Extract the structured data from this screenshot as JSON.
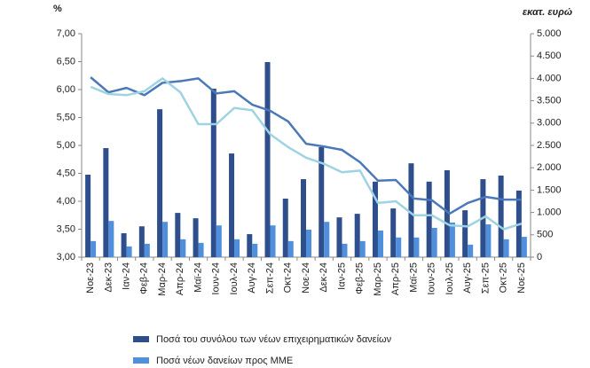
{
  "chart_data": {
    "type": "bar_line",
    "y_label": "%",
    "y2_label": "εκατ. ευρώ",
    "categories": [
      "Νοε-23",
      "Δεκ-23",
      "Ιαν-24",
      "Φεβ-24",
      "Μαρ-24",
      "Απρ-24",
      "Μαϊ-24",
      "Ιουν-24",
      "Ιουλ-24",
      "Αυγ-24",
      "Σεπ-24",
      "Οκτ-24",
      "Νοε-24",
      "Δεκ-24",
      "Ιαν-25",
      "Φεβ-25",
      "Μαρ-25",
      "Απρ-25",
      "Μαϊ-25",
      "Ιουν-25",
      "Ιουλ-25",
      "Αυγ-25",
      "Σεπ-25",
      "Οκτ-25",
      "Νοε-25"
    ],
    "series": [
      {
        "name": "Ποσά του συνόλου των νέων επιχειρηματικών δανείων",
        "type": "bar",
        "axis": "y2",
        "color": "#2e4f8c",
        "values": [
          1845,
          2440,
          535,
          690,
          3310,
          990,
          870,
          3770,
          2320,
          515,
          4365,
          1310,
          1745,
          2460,
          890,
          970,
          1690,
          1090,
          2100,
          1690,
          1945,
          1050,
          1745,
          1825,
          1490
        ]
      },
      {
        "name": "Ποσά νέων δανείων προς ΜΜΕ",
        "type": "bar",
        "axis": "y2",
        "color": "#4f8fdc",
        "values": [
          360,
          810,
          240,
          300,
          790,
          400,
          320,
          710,
          400,
          300,
          710,
          360,
          615,
          790,
          300,
          360,
          595,
          440,
          440,
          655,
          775,
          280,
          735,
          400,
          455
        ]
      },
      {
        "type": "line",
        "color": "#4a78b8",
        "values": [
          6.22,
          5.95,
          6.03,
          5.9,
          6.12,
          6.15,
          6.2,
          5.93,
          5.97,
          5.73,
          5.62,
          5.43,
          5.03,
          4.98,
          4.92,
          4.7,
          4.37,
          4.38,
          4.05,
          4.02,
          3.78,
          3.97,
          4.08,
          4.03,
          4.03
        ]
      },
      {
        "type": "line",
        "color": "#9fd3e2",
        "values": [
          6.05,
          5.92,
          5.9,
          5.97,
          6.2,
          5.95,
          5.38,
          5.38,
          5.67,
          5.63,
          5.2,
          4.97,
          4.78,
          4.67,
          4.52,
          4.55,
          3.97,
          4.0,
          3.75,
          3.75,
          3.57,
          3.55,
          3.73,
          3.5,
          3.6
        ]
      }
    ],
    "ylim": [
      3,
      7
    ],
    "yticks": [
      {
        "value": 3,
        "label": "3,00"
      },
      {
        "value": 3.5,
        "label": "3,50"
      },
      {
        "value": 4,
        "label": "4,00"
      },
      {
        "value": 4.5,
        "label": "4,50"
      },
      {
        "value": 5,
        "label": "5,00"
      },
      {
        "value": 5.5,
        "label": "5,50"
      },
      {
        "value": 6,
        "label": "6,00"
      },
      {
        "value": 6.5,
        "label": "6,50"
      },
      {
        "value": 7,
        "label": "7,00"
      }
    ],
    "y2lim": [
      0,
      5000
    ],
    "y2ticks": [
      0,
      {
        "value": 500,
        "label": "500"
      },
      {
        "value": 1000,
        "label": "1.000"
      },
      {
        "value": 1500,
        "label": "1.500"
      },
      {
        "value": 2000,
        "label": "2.000"
      },
      {
        "value": 2500,
        "label": "2.500"
      },
      {
        "value": 3000,
        "label": "3.000"
      },
      {
        "value": 3500,
        "label": "3.500"
      },
      {
        "value": 4000,
        "label": "4.000"
      },
      {
        "value": 4500,
        "label": "4.500"
      },
      {
        "value": 5000,
        "label": "5.000"
      }
    ],
    "grid": false,
    "legend": "bottom"
  }
}
